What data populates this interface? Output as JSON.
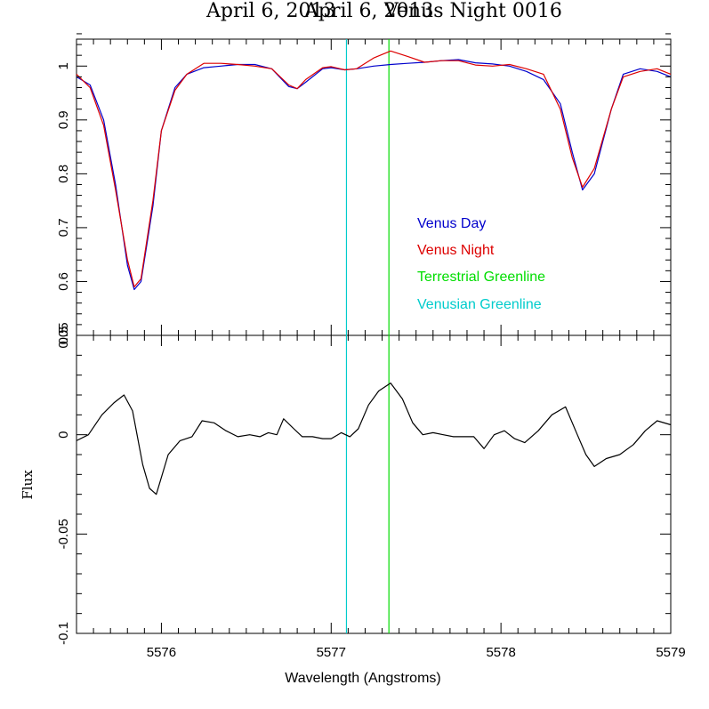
{
  "title_left": "April 6, 2013",
  "title_mid": "April 6, 2013",
  "title_right": "Venus Night 0016",
  "chart_data": {
    "type": "line",
    "xlabel": "Wavelength (Angstroms)",
    "xlim": [
      5575.5,
      5579
    ],
    "x_ticks": [
      "5576",
      "5577",
      "5578",
      "5579"
    ],
    "colors": {
      "venus_day": "#0000cc",
      "venus_night": "#dd0000",
      "terrestrial": "#00dd00",
      "venusian": "#00cccc",
      "residual": "#000000"
    },
    "markers": [
      {
        "name": "Venusian Greenline",
        "x": 5577.09,
        "color": "#00cccc"
      },
      {
        "name": "Terrestrial Greenline",
        "x": 5577.34,
        "color": "#00dd00"
      }
    ],
    "panels": [
      {
        "id": "top",
        "ylim": [
          0.5,
          1.05
        ],
        "y_ticks": [
          "0.5",
          "0.6",
          "0.7",
          "0.8",
          "0.9",
          "1"
        ],
        "legend": [
          "Venus Day",
          "Venus Night",
          "Terrestrial Greenline",
          "Venusian Greenline"
        ],
        "series": [
          {
            "name": "Venus Day",
            "color": "#0000cc",
            "x": [
              5575.5,
              5575.58,
              5575.66,
              5575.73,
              5575.8,
              5575.84,
              5575.88,
              5575.95,
              5576.0,
              5576.08,
              5576.15,
              5576.25,
              5576.35,
              5576.45,
              5576.55,
              5576.65,
              5576.75,
              5576.8,
              5576.85,
              5576.95,
              5577.0,
              5577.08,
              5577.15,
              5577.25,
              5577.35,
              5577.45,
              5577.55,
              5577.65,
              5577.75,
              5577.85,
              5577.95,
              5578.05,
              5578.15,
              5578.25,
              5578.35,
              5578.42,
              5578.48,
              5578.55,
              5578.65,
              5578.72,
              5578.82,
              5578.92,
              5579.0
            ],
            "y": [
              0.98,
              0.965,
              0.9,
              0.78,
              0.63,
              0.585,
              0.6,
              0.74,
              0.88,
              0.96,
              0.985,
              0.997,
              1.0,
              1.003,
              1.003,
              0.995,
              0.962,
              0.958,
              0.97,
              0.995,
              0.997,
              0.993,
              0.995,
              1.0,
              1.003,
              1.005,
              1.007,
              1.01,
              1.012,
              1.006,
              1.004,
              1.0,
              0.99,
              0.975,
              0.93,
              0.84,
              0.77,
              0.8,
              0.92,
              0.985,
              0.995,
              0.99,
              0.98
            ]
          },
          {
            "name": "Venus Night",
            "color": "#dd0000",
            "x": [
              5575.5,
              5575.58,
              5575.66,
              5575.73,
              5575.8,
              5575.84,
              5575.88,
              5575.95,
              5576.0,
              5576.08,
              5576.15,
              5576.25,
              5576.35,
              5576.45,
              5576.55,
              5576.65,
              5576.75,
              5576.8,
              5576.85,
              5576.95,
              5577.0,
              5577.08,
              5577.15,
              5577.25,
              5577.35,
              5577.45,
              5577.55,
              5577.65,
              5577.75,
              5577.85,
              5577.95,
              5578.05,
              5578.15,
              5578.25,
              5578.35,
              5578.42,
              5578.48,
              5578.55,
              5578.65,
              5578.72,
              5578.82,
              5578.92,
              5579.0
            ],
            "y": [
              0.985,
              0.96,
              0.89,
              0.77,
              0.64,
              0.59,
              0.605,
              0.75,
              0.88,
              0.955,
              0.985,
              1.005,
              1.005,
              1.003,
              1.0,
              0.995,
              0.965,
              0.958,
              0.975,
              0.997,
              0.999,
              0.993,
              0.995,
              1.015,
              1.028,
              1.018,
              1.007,
              1.01,
              1.01,
              1.002,
              1.0,
              1.003,
              0.995,
              0.985,
              0.92,
              0.83,
              0.775,
              0.81,
              0.92,
              0.98,
              0.99,
              0.995,
              0.985
            ]
          }
        ]
      },
      {
        "id": "bottom",
        "ylabel": "Flux",
        "ylim": [
          -0.1,
          0.05
        ],
        "y_ticks": [
          "-0.1",
          "-0.05",
          "0",
          "0.05"
        ],
        "series": [
          {
            "name": "",
            "color": "#000000",
            "x": [
              5575.5,
              5575.57,
              5575.65,
              5575.72,
              5575.78,
              5575.83,
              5575.89,
              5575.93,
              5575.97,
              5576.04,
              5576.11,
              5576.18,
              5576.24,
              5576.31,
              5576.38,
              5576.45,
              5576.52,
              5576.58,
              5576.63,
              5576.68,
              5576.72,
              5576.78,
              5576.83,
              5576.89,
              5576.95,
              5577.0,
              5577.06,
              5577.11,
              5577.16,
              5577.22,
              5577.28,
              5577.35,
              5577.42,
              5577.48,
              5577.54,
              5577.6,
              5577.66,
              5577.72,
              5577.78,
              5577.84,
              5577.9,
              5577.96,
              5578.02,
              5578.08,
              5578.14,
              5578.22,
              5578.3,
              5578.38,
              5578.45,
              5578.5,
              5578.55,
              5578.62,
              5578.7,
              5578.78,
              5578.85,
              5578.92,
              5579.0
            ],
            "y": [
              -0.003,
              0.0,
              0.01,
              0.016,
              0.02,
              0.012,
              -0.015,
              -0.027,
              -0.03,
              -0.01,
              -0.003,
              -0.001,
              0.007,
              0.006,
              0.002,
              -0.001,
              0.0,
              -0.001,
              0.001,
              0.0,
              0.008,
              0.003,
              -0.001,
              -0.001,
              -0.002,
              -0.002,
              0.001,
              -0.001,
              0.003,
              0.015,
              0.022,
              0.026,
              0.018,
              0.006,
              0.0,
              0.001,
              0.0,
              -0.001,
              -0.001,
              -0.001,
              -0.007,
              0.0,
              0.002,
              -0.002,
              -0.004,
              0.002,
              0.01,
              0.014,
              0.0,
              -0.01,
              -0.016,
              -0.012,
              -0.01,
              -0.005,
              0.002,
              0.007,
              0.005
            ]
          }
        ]
      }
    ]
  }
}
